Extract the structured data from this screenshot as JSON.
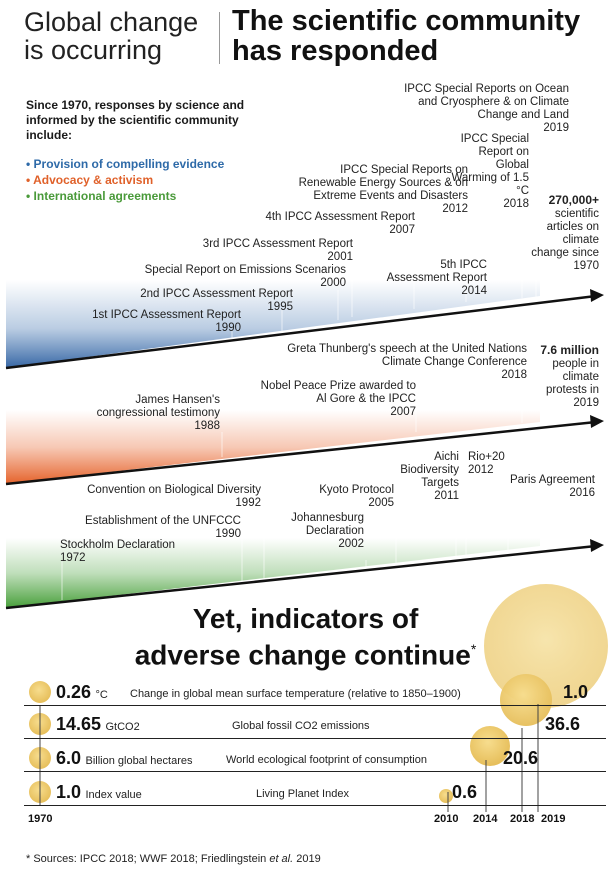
{
  "header": {
    "title_left_line1": "Global change",
    "title_left_line2": "is occurring",
    "title_right_line1": "The scientific community",
    "title_right_line2": "has responded"
  },
  "intro": {
    "text": "Since 1970, responses by science and informed by the scientific community include:",
    "bullets": [
      {
        "text": "• Provision of compelling evidence",
        "color": "#2e6aa8"
      },
      {
        "text": "• Advocacy & activism",
        "color": "#e0612a"
      },
      {
        "text": "• International agreements",
        "color": "#4a9a3a"
      }
    ]
  },
  "science_events": [
    {
      "name": "1st IPCC Assessment Report",
      "year": "1990"
    },
    {
      "name": "2nd IPCC Assessment Report",
      "year": "1995"
    },
    {
      "name": "Special Report on Emissions Scenarios",
      "year": "2000"
    },
    {
      "name": "3rd IPCC Assessment Report",
      "year": "2001"
    },
    {
      "name": "4th IPCC Assessment Report",
      "year": "2007"
    },
    {
      "name": "IPCC Special Reports on Renewable Energy Sources & on Extreme Events and Disasters",
      "year": "2012"
    },
    {
      "name": "5th IPCC Assessment Report",
      "year": "2014"
    },
    {
      "name": "IPCC Special Report on Global Warming of 1.5 °C",
      "year": "2018"
    },
    {
      "name": "IPCC Special Reports on Ocean and Cryosphere & on Climate Change and Land",
      "year": "2019"
    }
  ],
  "science_stat": {
    "value": "270,000+",
    "text": "scientific articles on climate change since 1970"
  },
  "advocacy_events": [
    {
      "name": "James Hansen's congressional testimony",
      "year": "1988"
    },
    {
      "name": "Nobel Peace Prize awarded to Al Gore & the IPCC",
      "year": "2007"
    },
    {
      "name": "Greta Thunberg's speech at the United Nations Climate Change Conference",
      "year": "2018"
    }
  ],
  "advocacy_stat": {
    "value": "7.6 million",
    "text": "people in climate protests in 2019"
  },
  "agreement_events": [
    {
      "name": "Stockholm Declaration",
      "year": "1972"
    },
    {
      "name": "Establishment of the UNFCCC",
      "year": "1990"
    },
    {
      "name": "Convention on Biological Diversity",
      "year": "1992"
    },
    {
      "name": "Johannesburg Declaration",
      "year": "2002"
    },
    {
      "name": "Kyoto Protocol",
      "year": "2005"
    },
    {
      "name": "Aichi Biodiversity Targets",
      "year": "2011"
    },
    {
      "name": "Rio+20",
      "year": "2012"
    },
    {
      "name": "Paris Agreement",
      "year": "2016"
    }
  ],
  "indicators_title_line1": "Yet, indicators of",
  "indicators_title_line2": "adverse change continue",
  "indicators_title_mark": "*",
  "indicators": [
    {
      "label": "Change in global mean surface temperature (relative to 1850–1900)",
      "start_value": "0.26",
      "unit": "°C",
      "end_value": "1.0",
      "end_year": "2019"
    },
    {
      "label": "Global fossil CO2 emissions",
      "start_value": "14.65",
      "unit": "GtCO2",
      "end_value": "36.6",
      "end_year": "2018"
    },
    {
      "label": "World ecological footprint of consumption",
      "start_value": "6.0",
      "unit": "Billion global hectares",
      "end_value": "20.6",
      "end_year": "2014"
    },
    {
      "label": "Living Planet Index",
      "start_value": "1.0",
      "unit": "Index value",
      "end_value": "0.6",
      "end_year": "2010"
    }
  ],
  "axis_years": [
    "1970",
    "2010",
    "2014",
    "2018",
    "2019"
  ],
  "source_prefix": "* Sources: IPCC  2018; WWF 2018; Friedlingstein ",
  "source_etal": "et al.",
  "source_suffix": " 2019",
  "colors": {
    "science": "#3b6fae",
    "advocacy": "#e8642c",
    "agreements": "#4aa23c",
    "bubble": "#e9c46a"
  }
}
